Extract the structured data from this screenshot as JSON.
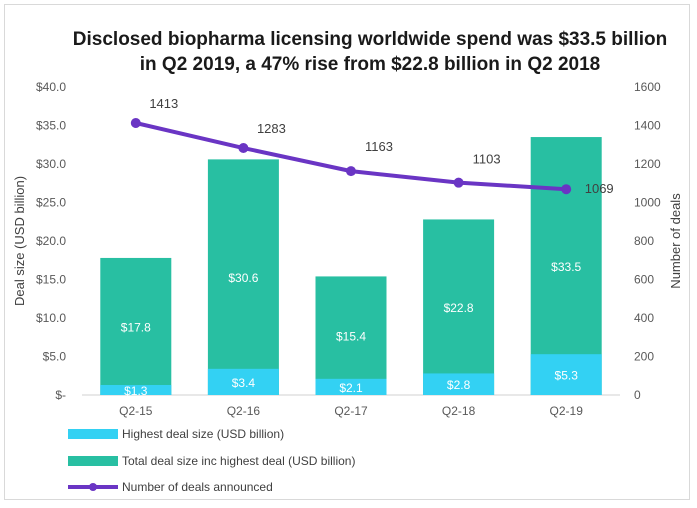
{
  "chart_data": {
    "type": "bar",
    "title": "Disclosed biopharma licensing worldwide spend was $33.5 billion in Q2 2019, a 47% rise from $22.8 billion in Q2 2018",
    "categories": [
      "Q2-15",
      "Q2-16",
      "Q2-17",
      "Q2-18",
      "Q2-19"
    ],
    "y_left": {
      "label": "Deal size (USD billion)",
      "ylim": [
        0,
        40
      ],
      "tick_values": [
        0,
        5,
        10,
        15,
        20,
        25,
        30,
        35,
        40
      ],
      "tick_labels": [
        "$-",
        "$5.0",
        "$10.0",
        "$15.0",
        "$20.0",
        "$25.0",
        "$30.0",
        "$35.0",
        "$40.0"
      ]
    },
    "y_right": {
      "label": "Number of deals",
      "ylim": [
        0,
        1600
      ],
      "tick_values": [
        0,
        200,
        400,
        600,
        800,
        1000,
        1200,
        1400,
        1600
      ],
      "tick_labels": [
        "0",
        "200",
        "400",
        "600",
        "800",
        "1000",
        "1200",
        "1400",
        "1600"
      ]
    },
    "series": [
      {
        "name": "Highest deal size (USD billion)",
        "kind": "bar",
        "axis": "left",
        "color": "#33d1f3",
        "values": [
          1.3,
          3.4,
          2.1,
          2.8,
          5.3
        ],
        "data_labels": [
          "$1.3",
          "$3.4",
          "$2.1",
          "$2.8",
          "$5.3"
        ]
      },
      {
        "name": "Total deal size inc highest deal (USD billion)",
        "kind": "bar",
        "axis": "left",
        "color": "#28bfa2",
        "values": [
          17.8,
          30.6,
          15.4,
          22.8,
          33.5
        ],
        "data_labels": [
          "$17.8",
          "$30.6",
          "$15.4",
          "$22.8",
          "$33.5"
        ]
      },
      {
        "name": "Number of deals announced",
        "kind": "line",
        "axis": "right",
        "color": "#6a35c4",
        "values": [
          1413,
          1283,
          1163,
          1103,
          1069
        ],
        "data_labels": [
          "1413",
          "1283",
          "1163",
          "1103",
          "1069"
        ]
      }
    ],
    "legend_position": "bottom-left",
    "grid": false
  }
}
